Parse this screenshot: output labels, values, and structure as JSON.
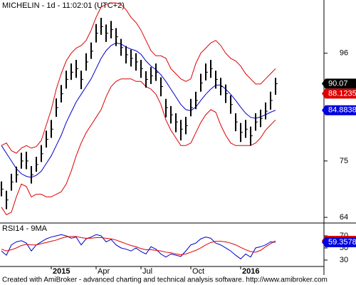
{
  "chart_data": [
    {
      "type": "ohlc",
      "title": "MICHELIN - 1d - 11:02:01 (UTC+2)",
      "categories": [
        null,
        null,
        null,
        null,
        null,
        null,
        null,
        null,
        null,
        null,
        "2015",
        null,
        null,
        null,
        null,
        null,
        null,
        null,
        null,
        "Apr",
        null,
        null,
        null,
        null,
        null,
        null,
        null,
        null,
        "Jul",
        null,
        null,
        null,
        null,
        null,
        null,
        null,
        null,
        null,
        "Oct",
        null,
        null,
        null,
        null,
        null,
        null,
        null,
        null,
        null,
        "2016",
        null,
        null,
        null,
        null,
        null,
        null,
        null
      ],
      "low": [
        68.1,
        65.6,
        69.2,
        70.8,
        73.5,
        73.4,
        70.6,
        72.9,
        74.8,
        77.6,
        79.5,
        83.6,
        86.4,
        89.1,
        90.8,
        91.2,
        89.0,
        92.6,
        94.9,
        98.1,
        99.6,
        98.2,
        98.9,
        97.4,
        95.5,
        94.0,
        93.4,
        92.6,
        91.2,
        89.3,
        90.0,
        90.6,
        87.6,
        83.5,
        82.3,
        80.6,
        79.0,
        80.2,
        83.7,
        85.1,
        88.5,
        90.7,
        91.2,
        89.1,
        87.8,
        86.3,
        84.2,
        80.8,
        78.7,
        79.5,
        78.0,
        80.9,
        81.6,
        83.1,
        85.0,
        87.9
      ],
      "high": [
        71.0,
        69.2,
        72.5,
        73.9,
        76.6,
        76.8,
        74.0,
        75.8,
        78.1,
        80.9,
        83.0,
        87.2,
        89.8,
        92.6,
        94.0,
        94.7,
        92.6,
        96.0,
        98.1,
        101.7,
        102.9,
        101.6,
        102.3,
        100.9,
        98.8,
        97.4,
        96.7,
        96.0,
        94.7,
        92.5,
        93.3,
        94.0,
        91.3,
        87.1,
        85.7,
        84.3,
        83.0,
        83.6,
        87.1,
        88.5,
        92.0,
        94.0,
        94.7,
        92.6,
        91.2,
        89.9,
        87.8,
        84.3,
        82.4,
        83.0,
        81.7,
        84.3,
        85.0,
        86.4,
        88.5,
        91.2
      ],
      "close": [
        69.5,
        67.4,
        70.9,
        72.3,
        75,
        75,
        72.3,
        74.3,
        76.4,
        79.2,
        81.2,
        85.4,
        88.1,
        90.9,
        92.3,
        93,
        90.9,
        94.3,
        96.4,
        99.9,
        101.2,
        99.9,
        100.6,
        99.2,
        97.1,
        95.7,
        95,
        94.3,
        93,
        90.9,
        91.6,
        92.3,
        89.5,
        85.4,
        84,
        82.6,
        81.2,
        81.9,
        85.4,
        86.8,
        90.2,
        92.3,
        93,
        90.9,
        89.5,
        88.1,
        86,
        82.6,
        80.6,
        81.2,
        79.9,
        82.6,
        83.3,
        84.7,
        86.8,
        90.07
      ],
      "color": "#000000",
      "overlays": [
        {
          "color": "#0000cc",
          "values": [
            78,
            76.5,
            75,
            73.5,
            72.5,
            72,
            71.8,
            72.2,
            73,
            74.5,
            76,
            78,
            80,
            82.5,
            84.5,
            86.5,
            88,
            89.5,
            91,
            93,
            95,
            96.5,
            97.5,
            98,
            97.8,
            97.2,
            96.8,
            96.5,
            95.8,
            94.5,
            93.5,
            92.8,
            91.8,
            90.5,
            89,
            87.5,
            86,
            85,
            84.8,
            85.5,
            86.8,
            88,
            89,
            89.8,
            89.8,
            89,
            88,
            86.8,
            85.5,
            84.3,
            83.5,
            83.3,
            83.6,
            84,
            84.5,
            84.8838
          ]
        },
        {
          "color": "#dd0000",
          "values": [
            78,
            78.5,
            77,
            76.5,
            77.5,
            78,
            77.5,
            77.8,
            79,
            82,
            85,
            89,
            92,
            94.5,
            96,
            97,
            97.5,
            98.5,
            100.5,
            103,
            105,
            105.5,
            105.8,
            105.8,
            105.5,
            104.5,
            103,
            102,
            100.5,
            98.5,
            96.5,
            95.5,
            95.5,
            95,
            93,
            92,
            91,
            90.5,
            91,
            94,
            96,
            97,
            98,
            98.5,
            97.5,
            96,
            95,
            94.5,
            93.5,
            92,
            91,
            90,
            90,
            91,
            92,
            93
          ]
        },
        {
          "color": "#dd0000",
          "values": [
            66,
            64.5,
            65,
            68,
            70.5,
            70,
            68,
            68.5,
            68.5,
            68,
            68,
            68.5,
            69,
            70.5,
            73,
            76,
            78.5,
            80.5,
            82,
            83.5,
            85,
            87.5,
            89.5,
            90.5,
            91,
            91,
            91,
            90.5,
            90.5,
            89.5,
            89,
            88,
            86,
            83,
            81,
            79.5,
            78,
            78,
            78.5,
            80.5,
            82.5,
            84,
            85,
            84.5,
            82,
            80,
            78.5,
            78,
            78,
            78,
            78,
            78.5,
            79.5,
            81,
            82,
            83
          ]
        }
      ],
      "ylim": [
        62.9,
        106.1
      ],
      "yticks": [
        64,
        75,
        96
      ],
      "last_labels": [
        {
          "value": 90.07,
          "color": "#000000"
        },
        {
          "value": 88.1235,
          "color": "#dd0000"
        },
        {
          "value": 84.8838,
          "color": "#0000dd"
        }
      ]
    },
    {
      "type": "line",
      "title": "RSI14 - 9MA",
      "series": [
        {
          "color": "#0000cc",
          "values": [
            45,
            38,
            55,
            60,
            62,
            58,
            45,
            55,
            60,
            65,
            68,
            70,
            72,
            70,
            66,
            68,
            55,
            65,
            68,
            72,
            70,
            60,
            64,
            55,
            50,
            48,
            45,
            50,
            44,
            40,
            52,
            48,
            40,
            35,
            40,
            38,
            36,
            45,
            55,
            58,
            65,
            68,
            66,
            58,
            55,
            50,
            45,
            38,
            32,
            40,
            35,
            50,
            52,
            55,
            60,
            59.3578
          ]
        },
        {
          "color": "#dd0000",
          "values": [
            48,
            45,
            47,
            50,
            54,
            56,
            55,
            55,
            57,
            59,
            61,
            63,
            66,
            68,
            69,
            69,
            67,
            66,
            66,
            67,
            67,
            66,
            65,
            63,
            60,
            57,
            54,
            52,
            49,
            47,
            47,
            46,
            45,
            43,
            42,
            40,
            39,
            40,
            43,
            46,
            50,
            55,
            59,
            61,
            61,
            60,
            58,
            55,
            51,
            47,
            44,
            43,
            46,
            52,
            57,
            61.7088
          ]
        }
      ],
      "ylim": [
        20.6,
        87.6
      ],
      "yticks": [
        30,
        50,
        70
      ],
      "last_labels": [
        {
          "value": 61.7088,
          "color": "#dd0000"
        },
        {
          "value": 59.3578,
          "color": "#0000dd"
        }
      ]
    }
  ],
  "footer": "Created with AmiBroker - advanced charting and technical analysis software. http://www.amibroker.com"
}
